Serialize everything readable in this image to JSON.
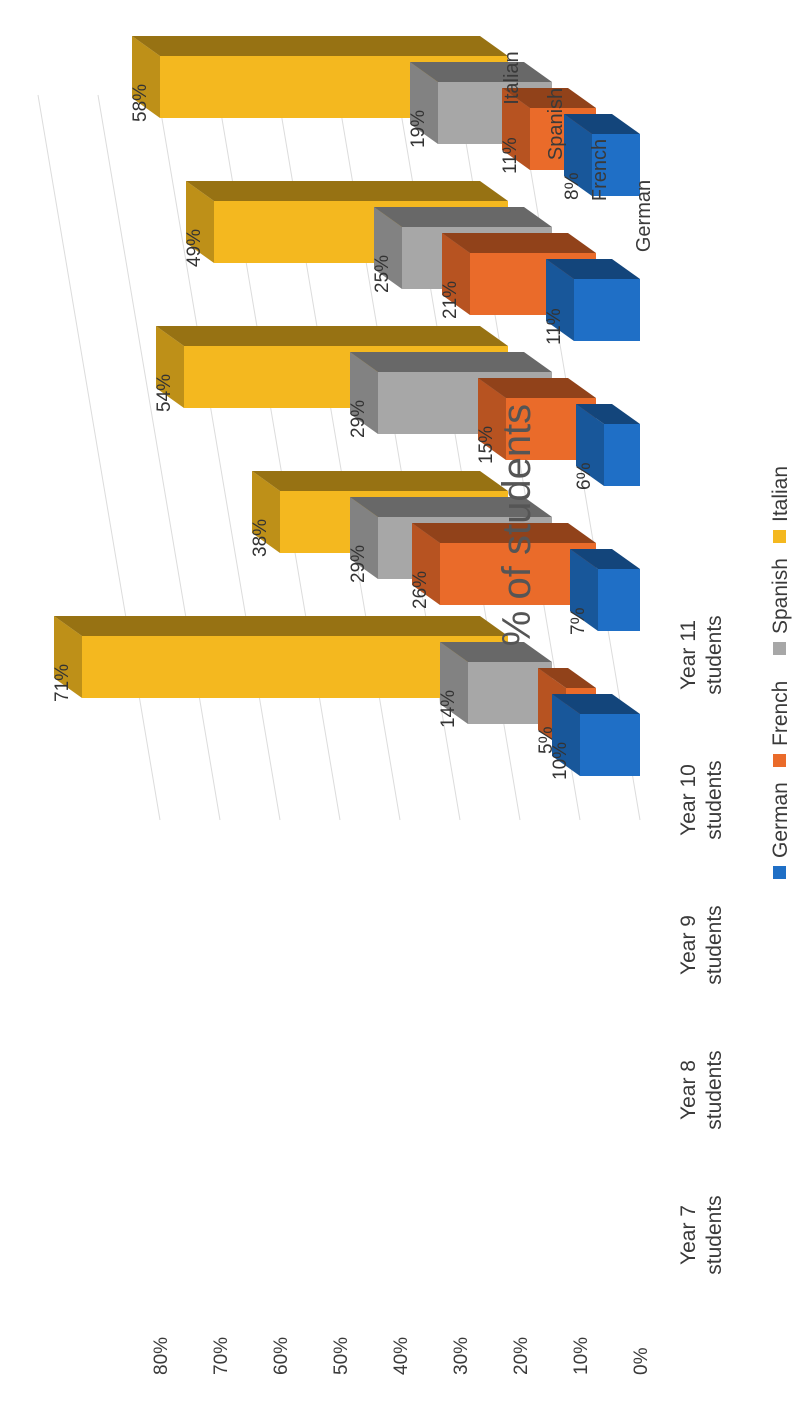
{
  "chart_data": {
    "type": "bar",
    "style": "3d-clustered-column",
    "orientation": "rotated-90-ccw",
    "title": "% of students",
    "categories": [
      "Year 7 students",
      "Year 8 students",
      "Year 9 students",
      "Year 10 students",
      "Year 11 students"
    ],
    "category_lines": [
      [
        "Year 7",
        "students"
      ],
      [
        "Year 8",
        "students"
      ],
      [
        "Year 9",
        "students"
      ],
      [
        "Year 10",
        "students"
      ],
      [
        "Year 11",
        "students"
      ]
    ],
    "series": [
      {
        "name": "German",
        "color": "#1f6fc6",
        "values": [
          10,
          7,
          6,
          11,
          8
        ]
      },
      {
        "name": "French",
        "color": "#ea6b2a",
        "values": [
          5,
          26,
          15,
          21,
          11
        ]
      },
      {
        "name": "Spanish",
        "color": "#a7a7a7",
        "values": [
          14,
          29,
          29,
          25,
          19
        ]
      },
      {
        "name": "Italian",
        "color": "#f4b81f",
        "values": [
          71,
          38,
          54,
          49,
          58
        ]
      }
    ],
    "data_labels": [
      [
        "10%",
        "7%",
        "6%",
        "11%",
        "8%"
      ],
      [
        "5%",
        "26%",
        "15%",
        "21%",
        "11%"
      ],
      [
        "14%",
        "29%",
        "29%",
        "25%",
        "19%"
      ],
      [
        "71%",
        "38%",
        "54%",
        "49%",
        "58%"
      ]
    ],
    "depth_axis_labels": [
      "Italian",
      "Spanish",
      "French",
      "German"
    ],
    "y_ticks": [
      "0%",
      "10%",
      "20%",
      "30%",
      "40%",
      "50%",
      "60%",
      "70%",
      "80%"
    ],
    "ylim": [
      0,
      80
    ],
    "legend_position": "bottom",
    "grid": true
  }
}
